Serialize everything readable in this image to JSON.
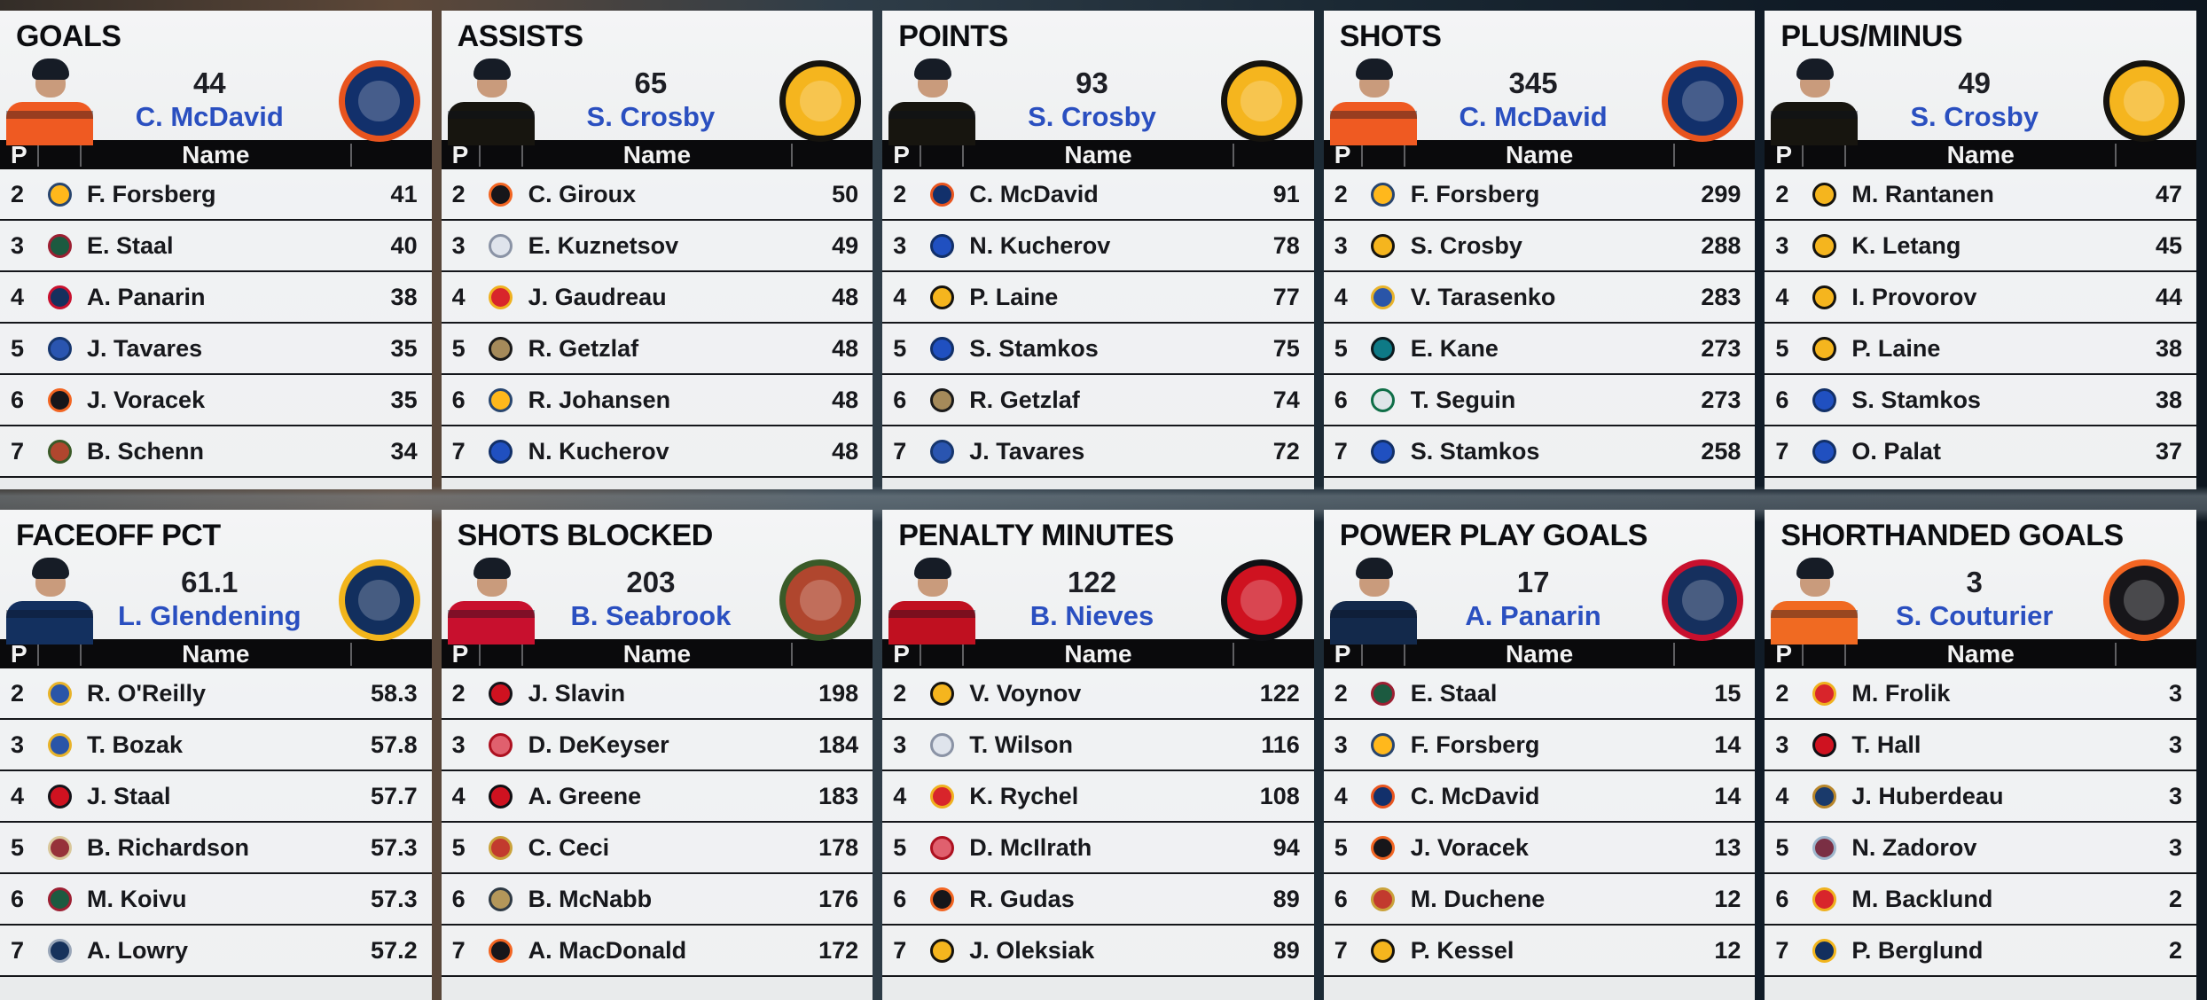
{
  "board": {
    "col_headers": {
      "pos": "P",
      "name": "Name",
      "value": ""
    },
    "colors": {
      "leader_name": "#2a4fc0",
      "header_bg": "#0a0a0c",
      "row_text": "#17181c",
      "panel_bg": "#edeff0"
    },
    "teams": {
      "EDM": {
        "bg": "#12306b",
        "ring": "#e8541e",
        "jersey": "#ef5a22"
      },
      "PIT": {
        "bg": "#f5b51e",
        "ring": "#15130e",
        "jersey": "#17150f"
      },
      "NSH": {
        "bg": "#ffb81c",
        "ring": "#28456e"
      },
      "MIN": {
        "bg": "#1c5a40",
        "ring": "#9c1f32"
      },
      "CBJ": {
        "bg": "#16305e",
        "ring": "#c8102e",
        "jersey": "#13294b"
      },
      "TOR": {
        "bg": "#2a55b0",
        "ring": "#16366e"
      },
      "PHI": {
        "bg": "#17161a",
        "ring": "#f26522",
        "jersey": "#f06a22"
      },
      "CHI": {
        "bg": "#b0462e",
        "ring": "#3a5a28",
        "jersey": "#c8102e"
      },
      "WSH": {
        "bg": "#dfe4ec",
        "ring": "#8a93a5"
      },
      "CGY": {
        "bg": "#d8252b",
        "ring": "#efb11f"
      },
      "ANA": {
        "bg": "#a58a5a",
        "ring": "#1a1a1a"
      },
      "TBL": {
        "bg": "#2050c0",
        "ring": "#123068"
      },
      "STL": {
        "bg": "#2a55a8",
        "ring": "#e8b32a"
      },
      "SJS": {
        "bg": "#0e7a86",
        "ring": "#0c1a1e"
      },
      "DAL": {
        "bg": "#dfe5e8",
        "ring": "#0f6e47"
      },
      "COL": {
        "bg": "#7a2f44",
        "ring": "#9db6cc"
      },
      "BUF": {
        "bg": "#122f5e",
        "ring": "#f2b51c",
        "jersey": "#13305f"
      },
      "CAR": {
        "bg": "#cf1220",
        "ring": "#14141a"
      },
      "ARI": {
        "bg": "#96323a",
        "ring": "#d9c79a"
      },
      "WPG": {
        "bg": "#16325c",
        "ring": "#99a6b8"
      },
      "DET": {
        "bg": "#e0606e",
        "ring": "#ad1120"
      },
      "NJD": {
        "bg": "#cf1220",
        "ring": "#101014",
        "jersey": "#c01020"
      },
      "OTT": {
        "bg": "#c23a2e",
        "ring": "#caa23a"
      },
      "VGK": {
        "bg": "#b4975a",
        "ring": "#2f3a44"
      },
      "FLA": {
        "bg": "#1a3a6b",
        "ring": "#b8862a"
      }
    },
    "panels": [
      {
        "title": "GOALS",
        "leader": {
          "value": "44",
          "name": "C. McDavid",
          "team": "EDM"
        },
        "rows": [
          {
            "rank": "2",
            "team": "NSH",
            "name": "F. Forsberg",
            "value": "41"
          },
          {
            "rank": "3",
            "team": "MIN",
            "name": "E. Staal",
            "value": "40"
          },
          {
            "rank": "4",
            "team": "CBJ",
            "name": "A. Panarin",
            "value": "38"
          },
          {
            "rank": "5",
            "team": "TOR",
            "name": "J. Tavares",
            "value": "35"
          },
          {
            "rank": "6",
            "team": "PHI",
            "name": "J. Voracek",
            "value": "35"
          },
          {
            "rank": "7",
            "team": "CHI",
            "name": "B. Schenn",
            "value": "34"
          }
        ]
      },
      {
        "title": "ASSISTS",
        "leader": {
          "value": "65",
          "name": "S. Crosby",
          "team": "PIT"
        },
        "rows": [
          {
            "rank": "2",
            "team": "PHI",
            "name": "C. Giroux",
            "value": "50"
          },
          {
            "rank": "3",
            "team": "WSH",
            "name": "E. Kuznetsov",
            "value": "49"
          },
          {
            "rank": "4",
            "team": "CGY",
            "name": "J. Gaudreau",
            "value": "48"
          },
          {
            "rank": "5",
            "team": "ANA",
            "name": "R. Getzlaf",
            "value": "48"
          },
          {
            "rank": "6",
            "team": "NSH",
            "name": "R. Johansen",
            "value": "48"
          },
          {
            "rank": "7",
            "team": "TBL",
            "name": "N. Kucherov",
            "value": "48"
          }
        ]
      },
      {
        "title": "POINTS",
        "leader": {
          "value": "93",
          "name": "S. Crosby",
          "team": "PIT"
        },
        "rows": [
          {
            "rank": "2",
            "team": "EDM",
            "name": "C. McDavid",
            "value": "91"
          },
          {
            "rank": "3",
            "team": "TBL",
            "name": "N. Kucherov",
            "value": "78"
          },
          {
            "rank": "4",
            "team": "PIT",
            "name": "P. Laine",
            "value": "77"
          },
          {
            "rank": "5",
            "team": "TBL",
            "name": "S. Stamkos",
            "value": "75"
          },
          {
            "rank": "6",
            "team": "ANA",
            "name": "R. Getzlaf",
            "value": "74"
          },
          {
            "rank": "7",
            "team": "TOR",
            "name": "J. Tavares",
            "value": "72"
          }
        ]
      },
      {
        "title": "SHOTS",
        "leader": {
          "value": "345",
          "name": "C. McDavid",
          "team": "EDM"
        },
        "rows": [
          {
            "rank": "2",
            "team": "NSH",
            "name": "F. Forsberg",
            "value": "299"
          },
          {
            "rank": "3",
            "team": "PIT",
            "name": "S. Crosby",
            "value": "288"
          },
          {
            "rank": "4",
            "team": "STL",
            "name": "V. Tarasenko",
            "value": "283"
          },
          {
            "rank": "5",
            "team": "SJS",
            "name": "E. Kane",
            "value": "273"
          },
          {
            "rank": "6",
            "team": "DAL",
            "name": "T. Seguin",
            "value": "273"
          },
          {
            "rank": "7",
            "team": "TBL",
            "name": "S. Stamkos",
            "value": "258"
          }
        ]
      },
      {
        "title": "PLUS/MINUS",
        "leader": {
          "value": "49",
          "name": "S. Crosby",
          "team": "PIT"
        },
        "rows": [
          {
            "rank": "2",
            "team": "PIT",
            "name": "M. Rantanen",
            "value": "47"
          },
          {
            "rank": "3",
            "team": "PIT",
            "name": "K. Letang",
            "value": "45"
          },
          {
            "rank": "4",
            "team": "PIT",
            "name": "I. Provorov",
            "value": "44"
          },
          {
            "rank": "5",
            "team": "PIT",
            "name": "P. Laine",
            "value": "38"
          },
          {
            "rank": "6",
            "team": "TBL",
            "name": "S. Stamkos",
            "value": "38"
          },
          {
            "rank": "7",
            "team": "TBL",
            "name": "O. Palat",
            "value": "37"
          }
        ]
      },
      {
        "title": "FACEOFF PCT",
        "leader": {
          "value": "61.1",
          "name": "L. Glendening",
          "team": "BUF"
        },
        "rows": [
          {
            "rank": "2",
            "team": "STL",
            "name": "R. O'Reilly",
            "value": "58.3"
          },
          {
            "rank": "3",
            "team": "STL",
            "name": "T. Bozak",
            "value": "57.8"
          },
          {
            "rank": "4",
            "team": "CAR",
            "name": "J. Staal",
            "value": "57.7"
          },
          {
            "rank": "5",
            "team": "ARI",
            "name": "B. Richardson",
            "value": "57.3"
          },
          {
            "rank": "6",
            "team": "MIN",
            "name": "M. Koivu",
            "value": "57.3"
          },
          {
            "rank": "7",
            "team": "WPG",
            "name": "A. Lowry",
            "value": "57.2"
          }
        ]
      },
      {
        "title": "SHOTS BLOCKED",
        "leader": {
          "value": "203",
          "name": "B. Seabrook",
          "team": "CHI"
        },
        "rows": [
          {
            "rank": "2",
            "team": "CAR",
            "name": "J. Slavin",
            "value": "198"
          },
          {
            "rank": "3",
            "team": "DET",
            "name": "D. DeKeyser",
            "value": "184"
          },
          {
            "rank": "4",
            "team": "NJD",
            "name": "A. Greene",
            "value": "183"
          },
          {
            "rank": "5",
            "team": "OTT",
            "name": "C. Ceci",
            "value": "178"
          },
          {
            "rank": "6",
            "team": "VGK",
            "name": "B. McNabb",
            "value": "176"
          },
          {
            "rank": "7",
            "team": "PHI",
            "name": "A. MacDonald",
            "value": "172"
          }
        ]
      },
      {
        "title": "PENALTY MINUTES",
        "leader": {
          "value": "122",
          "name": "B. Nieves",
          "team": "NJD"
        },
        "rows": [
          {
            "rank": "2",
            "team": "PIT",
            "name": "V. Voynov",
            "value": "122"
          },
          {
            "rank": "3",
            "team": "WSH",
            "name": "T. Wilson",
            "value": "116"
          },
          {
            "rank": "4",
            "team": "CGY",
            "name": "K. Rychel",
            "value": "108"
          },
          {
            "rank": "5",
            "team": "DET",
            "name": "D. McIlrath",
            "value": "94"
          },
          {
            "rank": "6",
            "team": "PHI",
            "name": "R. Gudas",
            "value": "89"
          },
          {
            "rank": "7",
            "team": "PIT",
            "name": "J. Oleksiak",
            "value": "89"
          }
        ]
      },
      {
        "title": "POWER PLAY GOALS",
        "leader": {
          "value": "17",
          "name": "A. Panarin",
          "team": "CBJ"
        },
        "rows": [
          {
            "rank": "2",
            "team": "MIN",
            "name": "E. Staal",
            "value": "15"
          },
          {
            "rank": "3",
            "team": "NSH",
            "name": "F. Forsberg",
            "value": "14"
          },
          {
            "rank": "4",
            "team": "EDM",
            "name": "C. McDavid",
            "value": "14"
          },
          {
            "rank": "5",
            "team": "PHI",
            "name": "J. Voracek",
            "value": "13"
          },
          {
            "rank": "6",
            "team": "OTT",
            "name": "M. Duchene",
            "value": "12"
          },
          {
            "rank": "7",
            "team": "PIT",
            "name": "P. Kessel",
            "value": "12"
          }
        ]
      },
      {
        "title": "SHORTHANDED GOALS",
        "leader": {
          "value": "3",
          "name": "S. Couturier",
          "team": "PHI"
        },
        "rows": [
          {
            "rank": "2",
            "team": "CGY",
            "name": "M. Frolik",
            "value": "3"
          },
          {
            "rank": "3",
            "team": "NJD",
            "name": "T. Hall",
            "value": "3"
          },
          {
            "rank": "4",
            "team": "FLA",
            "name": "J. Huberdeau",
            "value": "3"
          },
          {
            "rank": "5",
            "team": "COL",
            "name": "N. Zadorov",
            "value": "3"
          },
          {
            "rank": "6",
            "team": "CGY",
            "name": "M. Backlund",
            "value": "2"
          },
          {
            "rank": "7",
            "team": "BUF",
            "name": "P. Berglund",
            "value": "2"
          }
        ]
      }
    ]
  }
}
